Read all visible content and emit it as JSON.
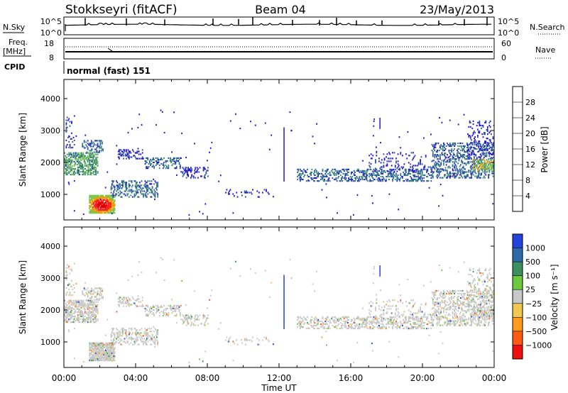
{
  "header": {
    "station": "Stokkseyri (fitACF)",
    "beam": "Beam 04",
    "date": "23/May/2013"
  },
  "top_panels": {
    "nsky_label": "N.Sky",
    "nsky_ticks": [
      "10^5",
      "10^0"
    ],
    "nsearch_label": "N.Search",
    "nsearch_ticks": [
      "10^5",
      "10^0"
    ],
    "freq_label": "Freq.",
    "freq_unit": "[MHz]",
    "freq_ticks": [
      "18",
      "8"
    ],
    "nave_label": "Nave",
    "nave_ticks": [
      "60",
      "0"
    ],
    "cpid_label": "CPID",
    "cpid_value": "normal (fast) 151"
  },
  "chart_data": [
    {
      "type": "heatmap",
      "name": "power",
      "ylabel": "Slant Range [km]",
      "ylim": [
        200,
        4600
      ],
      "yticks": [
        1000,
        2000,
        3000,
        4000
      ],
      "xlim": [
        0,
        24
      ],
      "colorbar": {
        "label": "Power [dB]",
        "ticks": [
          "4",
          "8",
          "12",
          "16",
          "20",
          "24",
          "28"
        ],
        "colors": [
          "#2a14d2",
          "#2e5aa0",
          "#3c8c78",
          "#78c850",
          "#e6a000",
          "#ff6a00",
          "#ff2020",
          "#e80000"
        ]
      }
    },
    {
      "type": "heatmap",
      "name": "velocity",
      "ylabel": "Slant Range [km]",
      "ylim": [
        200,
        4600
      ],
      "yticks": [
        1000,
        2000,
        3000,
        4000
      ],
      "xlim": [
        0,
        24
      ],
      "colorbar": {
        "label": "Velocity [m s⁻¹]",
        "ticks": [
          "1000",
          "500",
          "100",
          "25",
          "−25",
          "−100",
          "−500",
          "−1000"
        ],
        "colors": [
          "#2244dd",
          "#2e6aa8",
          "#3c9060",
          "#6cc83c",
          "#c8c8c8",
          "#f0c850",
          "#ff9a1e",
          "#ff5a14",
          "#ee1010"
        ]
      }
    }
  ],
  "xaxis": {
    "label": "Time UT",
    "ticks": [
      "00:00",
      "04:00",
      "08:00",
      "12:00",
      "16:00",
      "20:00",
      "00:00"
    ]
  }
}
